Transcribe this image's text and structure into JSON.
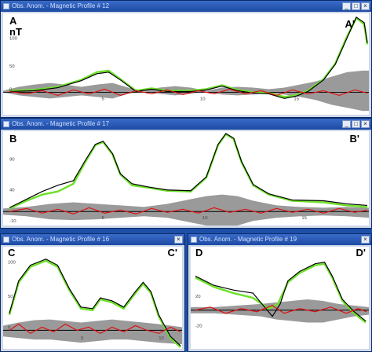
{
  "colors": {
    "observed": "#6ee02a",
    "model": "#000000",
    "residual": "#e01010",
    "envelope": "#9a9a9a",
    "baseline": "#000000"
  },
  "windows": [
    {
      "title": "Obs. Anom. - Magnetic Profile # 12",
      "left_label": "A",
      "right_label": "A'",
      "unit": "nT",
      "y_ticks": [
        "100",
        "50",
        "0"
      ],
      "x_ticks": [
        "5",
        "10",
        "15"
      ]
    },
    {
      "title": "Obs. Anom. - Magnetic Profile # 17",
      "left_label": "B",
      "right_label": "B'",
      "y_ticks": [
        "90",
        "40",
        "-10"
      ],
      "x_ticks": [
        "5",
        "10",
        "15"
      ]
    },
    {
      "title": "Obs. Anom. - Magnetic Profile # 16",
      "left_label": "C",
      "right_label": "C'",
      "y_ticks": [
        "100",
        "50",
        "0"
      ],
      "x_ticks": [
        "5",
        "10"
      ]
    },
    {
      "title": "Obs. Anom. - Magnetic Profile # 19",
      "left_label": "D",
      "right_label": "D'",
      "y_ticks": [
        "20",
        "-20"
      ],
      "x_ticks": []
    }
  ]
}
